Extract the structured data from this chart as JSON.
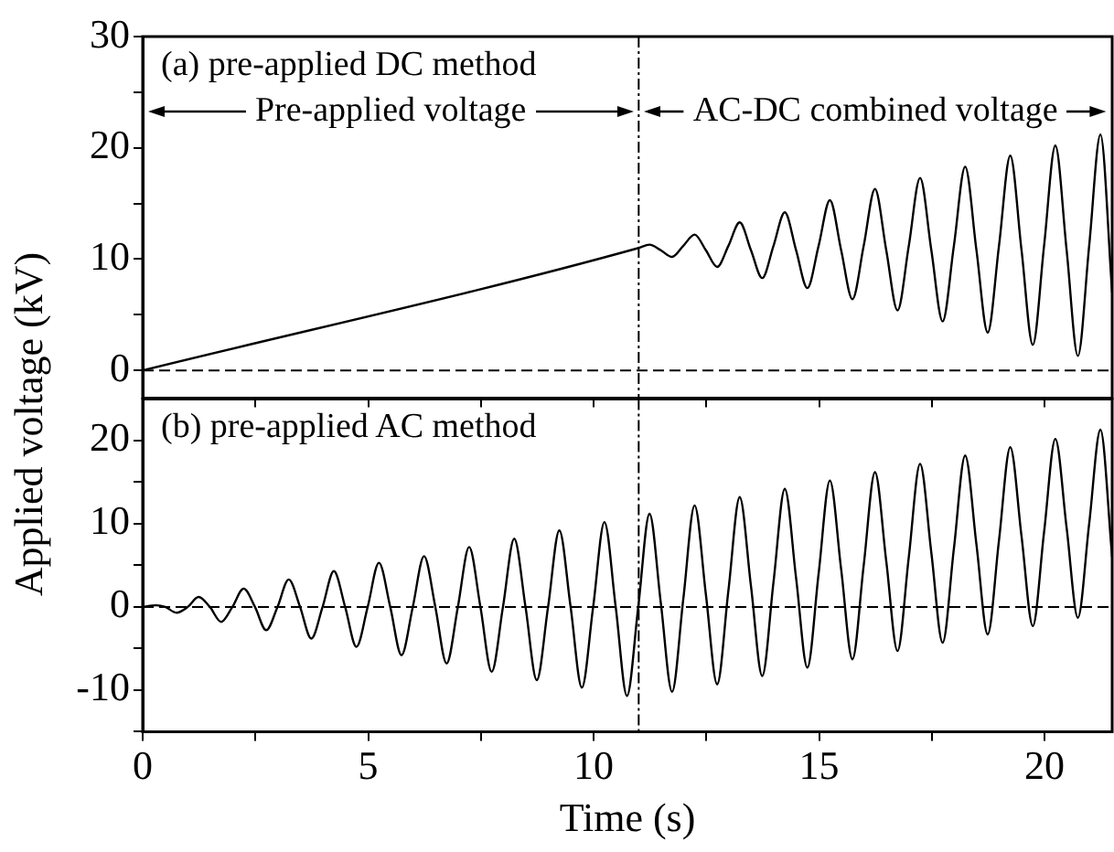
{
  "chart_data": [
    {
      "type": "line",
      "ylabel": "Applied voltage (kV)",
      "xlim": [
        0,
        21.5
      ],
      "ylim": [
        -2.5,
        30
      ],
      "xticks": [
        0,
        {
          "value": 2.5,
          "label": null
        },
        5,
        {
          "value": 7.5,
          "label": null
        },
        10,
        {
          "value": 12.5,
          "label": null
        },
        15,
        {
          "value": 17.5,
          "label": null
        },
        20
      ],
      "yticks": [
        0,
        {
          "value": 5,
          "label": null
        },
        10,
        {
          "value": 15,
          "label": null
        },
        20,
        {
          "value": 25,
          "label": null
        },
        30
      ],
      "tick_labels": "y",
      "marker": "none",
      "line_style": "solid",
      "legend": false,
      "series": [
        {
          "color": "#000000",
          "x": [
            0,
            11,
            11.24,
            11.49,
            11.74,
            11.99,
            12.24,
            12.49,
            12.74,
            12.99,
            13.24,
            13.49,
            13.74,
            13.99,
            14.24,
            14.49,
            14.74,
            14.99,
            15.24,
            15.49,
            15.74,
            15.99,
            16.24,
            16.49,
            16.74,
            16.99,
            17.24,
            17.49,
            17.74,
            17.99,
            18.24,
            18.49,
            18.74,
            18.99,
            19.24,
            19.49,
            19.74,
            19.99,
            20.24,
            20.49,
            20.74,
            20.99,
            21.24,
            21.5
          ],
          "values": [
            0,
            11,
            11.3,
            10.8,
            10.2,
            11.2,
            12.2,
            10.8,
            9.3,
            11.2,
            13.3,
            10.8,
            8.3,
            11.2,
            14.2,
            10.8,
            7.4,
            11.2,
            15.3,
            10.8,
            6.4,
            11.2,
            16.3,
            10.8,
            5.4,
            11.2,
            17.3,
            10.8,
            4.4,
            11.2,
            18.3,
            10.8,
            3.4,
            11.2,
            19.3,
            10.8,
            2.3,
            11.2,
            20.2,
            10.8,
            1.3,
            11.2,
            21.2,
            7
          ]
        }
      ],
      "ref_lines": [
        {
          "axis": "y",
          "value": 0,
          "line_style": "dashed"
        },
        {
          "axis": "x",
          "value": 11,
          "line_style": "dashed"
        }
      ],
      "annotations": [
        "(a) pre-applied DC method",
        "Pre-applied voltage",
        "AC-DC combined voltage"
      ]
    },
    {
      "type": "line",
      "xlabel": "Time (s)",
      "xlim": [
        0,
        21.5
      ],
      "ylim": [
        -15,
        25
      ],
      "xticks": [
        0,
        {
          "value": 2.5,
          "label": null
        },
        5,
        {
          "value": 7.5,
          "label": null
        },
        10,
        {
          "value": 12.5,
          "label": null
        },
        15,
        {
          "value": 17.5,
          "label": null
        },
        20
      ],
      "yticks": [
        {
          "value": -15,
          "label": null
        },
        -10,
        {
          "value": -5,
          "label": null
        },
        0,
        {
          "value": 5,
          "label": null
        },
        10,
        {
          "value": 15,
          "label": null
        },
        20
      ],
      "marker": "none",
      "line_style": "solid",
      "legend": false,
      "series": [
        {
          "color": "#000000",
          "x": [
            0,
            0.3,
            0.5,
            0.75,
            1.0,
            1.24,
            1.49,
            1.74,
            1.99,
            2.24,
            2.49,
            2.74,
            2.99,
            3.24,
            3.49,
            3.74,
            3.99,
            4.24,
            4.49,
            4.74,
            4.99,
            5.24,
            5.49,
            5.74,
            5.99,
            6.24,
            6.49,
            6.74,
            6.99,
            7.24,
            7.49,
            7.74,
            7.99,
            8.24,
            8.49,
            8.74,
            8.99,
            9.24,
            9.49,
            9.74,
            9.99,
            10.24,
            10.49,
            10.74,
            10.99,
            11.24,
            11.49,
            11.74,
            11.99,
            12.24,
            12.49,
            12.74,
            12.99,
            13.24,
            13.49,
            13.74,
            13.99,
            14.24,
            14.49,
            14.74,
            14.99,
            15.24,
            15.49,
            15.74,
            15.99,
            16.24,
            16.49,
            16.74,
            16.99,
            17.24,
            17.49,
            17.74,
            17.99,
            18.24,
            18.49,
            18.74,
            18.99,
            19.24,
            19.49,
            19.74,
            19.99,
            20.24,
            20.49,
            20.74,
            20.99,
            21.24,
            21.5
          ],
          "values": [
            0,
            0.2,
            0,
            -0.7,
            0,
            1.2,
            0,
            -1.8,
            0,
            2.2,
            0,
            -2.8,
            0,
            3.3,
            0,
            -3.8,
            0,
            4.3,
            0,
            -4.8,
            0,
            5.3,
            0,
            -5.8,
            0,
            6.1,
            0,
            -6.8,
            0,
            7.2,
            0,
            -7.8,
            0,
            8.2,
            0,
            -8.8,
            0,
            9.2,
            0,
            -9.7,
            0,
            10.2,
            0,
            -10.7,
            0,
            11.2,
            0.5,
            -10.2,
            1,
            12.2,
            1.5,
            -9.3,
            2,
            13.2,
            2.5,
            -8.3,
            3,
            14.2,
            3.5,
            -7.3,
            4,
            15.2,
            4.5,
            -6.3,
            5,
            16.2,
            5.5,
            -5.3,
            6,
            17.2,
            6.5,
            -4.3,
            7,
            18.2,
            7.5,
            -3.3,
            8,
            19.2,
            8.5,
            -2.3,
            9,
            20.2,
            9.5,
            -1.3,
            10,
            21.3,
            6
          ]
        }
      ],
      "ref_lines": [
        {
          "axis": "y",
          "value": 0,
          "line_style": "dashed"
        },
        {
          "axis": "x",
          "value": 11,
          "line_style": "dashed"
        }
      ],
      "annotations": [
        "(b) pre-applied AC method"
      ]
    }
  ]
}
